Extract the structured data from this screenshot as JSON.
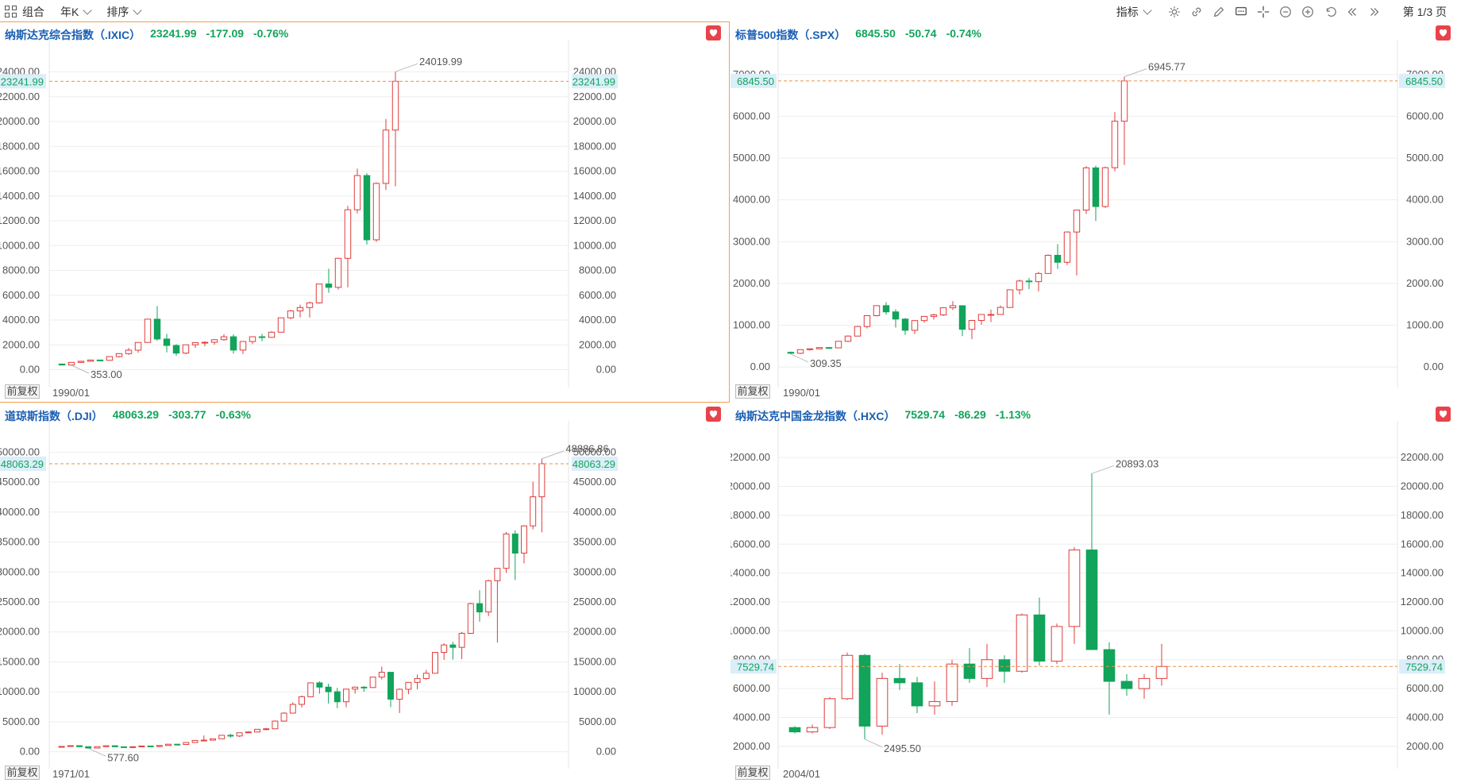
{
  "toolbar": {
    "combo_label": "组合",
    "period_label": "年K",
    "sort_label": "排序",
    "indicator_label": "指标",
    "page_label": "第 1/3 页",
    "icons": [
      "settings-icon",
      "link-icon",
      "pen-icon",
      "comment-icon",
      "crosshair-icon",
      "zoom-out-icon",
      "zoom-in-icon",
      "undo-icon",
      "first-page-icon",
      "prev-page-icon"
    ]
  },
  "panels": [
    {
      "name": "纳斯达克综合指数（.IXIC）",
      "price": "23241.99",
      "change": "-177.09",
      "pct": "-0.76%",
      "adjust_label": "前复权",
      "start_date": "1990/01",
      "axis_labels": [
        "0.00",
        "2000.00",
        "4000.00",
        "6000.00",
        "8000.00",
        "10000.00",
        "12000.00",
        "14000.00",
        "16000.00",
        "18000.00",
        "20000.00",
        "22000.00",
        "24000.00"
      ],
      "current_label": "23241.99",
      "high_label": "24019.99",
      "low_label": "353.00"
    },
    {
      "name": "标普500指数（.SPX）",
      "price": "6845.50",
      "change": "-50.74",
      "pct": "-0.74%",
      "adjust_label": "前复权",
      "start_date": "1990/01",
      "axis_labels": [
        "0.00",
        "1000.00",
        "2000.00",
        "3000.00",
        "4000.00",
        "5000.00",
        "6000.00",
        "7000.00"
      ],
      "current_label": "6845.50",
      "high_label": "6945.77",
      "low_label": "309.35"
    },
    {
      "name": "道琼斯指数（.DJI）",
      "price": "48063.29",
      "change": "-303.77",
      "pct": "-0.63%",
      "adjust_label": "前复权",
      "start_date": "1971/01",
      "axis_labels": [
        "0.00",
        "5000.00",
        "10000.00",
        "15000.00",
        "20000.00",
        "25000.00",
        "30000.00",
        "35000.00",
        "40000.00",
        "45000.00",
        "50000.00"
      ],
      "current_label": "48063.29",
      "high_label": "48886.86",
      "low_label": "577.60"
    },
    {
      "name": "纳斯达克中国金龙指数（.HXC）",
      "price": "7529.74",
      "change": "-86.29",
      "pct": "-1.13%",
      "adjust_label": "前复权",
      "start_date": "2004/01",
      "axis_labels": [
        "2000.00",
        "4000.00",
        "6000.00",
        "8000.00",
        "10000.00",
        "12000.00",
        "14000.00",
        "16000.00",
        "18000.00",
        "20000.00",
        "22000.00"
      ],
      "current_label": "7529.74",
      "high_label": "20893.03",
      "low_label": "2495.50"
    }
  ],
  "colors": {
    "up": "#e03c3c",
    "down": "#11a45a",
    "title": "#1a5fb4",
    "grid": "#eeeeee",
    "current_line": "#e8924a",
    "price_label_bg": "#dbeef9",
    "heart": "#e8424b"
  },
  "chart_data": [
    {
      "type": "candlestick",
      "title": "纳斯达克综合指数（.IXIC）",
      "period": "yearly",
      "ylim": [
        -800,
        24800
      ],
      "candles": [
        {
          "o": 454,
          "h": 470,
          "l": 353,
          "c": 374
        },
        {
          "o": 374,
          "h": 590,
          "l": 352,
          "c": 586
        },
        {
          "o": 586,
          "h": 680,
          "l": 550,
          "c": 677
        },
        {
          "o": 677,
          "h": 790,
          "l": 650,
          "c": 777
        },
        {
          "o": 777,
          "h": 800,
          "l": 690,
          "c": 752
        },
        {
          "o": 752,
          "h": 1070,
          "l": 740,
          "c": 1052
        },
        {
          "o": 1052,
          "h": 1330,
          "l": 980,
          "c": 1291
        },
        {
          "o": 1291,
          "h": 1750,
          "l": 1190,
          "c": 1570
        },
        {
          "o": 1570,
          "h": 2200,
          "l": 1360,
          "c": 2193
        },
        {
          "o": 2193,
          "h": 4070,
          "l": 2170,
          "c": 4069
        },
        {
          "o": 4069,
          "h": 5130,
          "l": 2330,
          "c": 2471
        },
        {
          "o": 2471,
          "h": 2890,
          "l": 1390,
          "c": 1950
        },
        {
          "o": 1950,
          "h": 2060,
          "l": 1110,
          "c": 1335
        },
        {
          "o": 1335,
          "h": 2010,
          "l": 1250,
          "c": 2003
        },
        {
          "o": 2003,
          "h": 2150,
          "l": 1750,
          "c": 2175
        },
        {
          "o": 2175,
          "h": 2280,
          "l": 1880,
          "c": 2205
        },
        {
          "o": 2205,
          "h": 2470,
          "l": 2010,
          "c": 2415
        },
        {
          "o": 2415,
          "h": 2860,
          "l": 2330,
          "c": 2652
        },
        {
          "o": 2652,
          "h": 2860,
          "l": 1290,
          "c": 1577
        },
        {
          "o": 1577,
          "h": 2300,
          "l": 1260,
          "c": 2269
        },
        {
          "o": 2269,
          "h": 2680,
          "l": 2060,
          "c": 2653
        },
        {
          "o": 2653,
          "h": 2890,
          "l": 2300,
          "c": 2605
        },
        {
          "o": 2605,
          "h": 3100,
          "l": 2570,
          "c": 3020
        },
        {
          "o": 3020,
          "h": 4180,
          "l": 3010,
          "c": 4177
        },
        {
          "o": 4177,
          "h": 4820,
          "l": 4070,
          "c": 4736
        },
        {
          "o": 4736,
          "h": 5230,
          "l": 4210,
          "c": 5007
        },
        {
          "o": 5007,
          "h": 5490,
          "l": 4200,
          "c": 5383
        },
        {
          "o": 5383,
          "h": 6910,
          "l": 5320,
          "c": 6903
        },
        {
          "o": 6903,
          "h": 8140,
          "l": 6190,
          "c": 6635
        },
        {
          "o": 6635,
          "h": 9020,
          "l": 6460,
          "c": 8973
        },
        {
          "o": 8973,
          "h": 13200,
          "l": 6630,
          "c": 12888
        },
        {
          "o": 12888,
          "h": 16210,
          "l": 12600,
          "c": 15645
        },
        {
          "o": 15645,
          "h": 15830,
          "l": 10090,
          "c": 10466
        },
        {
          "o": 10466,
          "h": 15100,
          "l": 10300,
          "c": 15011
        },
        {
          "o": 15011,
          "h": 20200,
          "l": 14480,
          "c": 19311
        },
        {
          "o": 19311,
          "h": 24019,
          "l": 14780,
          "c": 23242
        }
      ]
    },
    {
      "type": "candlestick",
      "title": "标普500指数（.SPX）",
      "period": "yearly",
      "ylim": [
        -300,
        7300
      ],
      "candles": [
        {
          "o": 353,
          "h": 370,
          "l": 309,
          "c": 330
        },
        {
          "o": 330,
          "h": 420,
          "l": 312,
          "c": 417
        },
        {
          "o": 417,
          "h": 442,
          "l": 394,
          "c": 436
        },
        {
          "o": 436,
          "h": 471,
          "l": 429,
          "c": 466
        },
        {
          "o": 466,
          "h": 482,
          "l": 438,
          "c": 459
        },
        {
          "o": 459,
          "h": 621,
          "l": 459,
          "c": 616
        },
        {
          "o": 616,
          "h": 757,
          "l": 598,
          "c": 741
        },
        {
          "o": 741,
          "h": 983,
          "l": 737,
          "c": 970
        },
        {
          "o": 970,
          "h": 1242,
          "l": 923,
          "c": 1229
        },
        {
          "o": 1229,
          "h": 1469,
          "l": 1212,
          "c": 1469
        },
        {
          "o": 1469,
          "h": 1553,
          "l": 1254,
          "c": 1320
        },
        {
          "o": 1320,
          "h": 1384,
          "l": 944,
          "c": 1148
        },
        {
          "o": 1148,
          "h": 1172,
          "l": 768,
          "c": 880
        },
        {
          "o": 880,
          "h": 1112,
          "l": 788,
          "c": 1112
        },
        {
          "o": 1112,
          "h": 1217,
          "l": 1060,
          "c": 1212
        },
        {
          "o": 1212,
          "h": 1275,
          "l": 1137,
          "c": 1248
        },
        {
          "o": 1248,
          "h": 1431,
          "l": 1219,
          "c": 1418
        },
        {
          "o": 1418,
          "h": 1576,
          "l": 1364,
          "c": 1468
        },
        {
          "o": 1468,
          "h": 1471,
          "l": 741,
          "c": 903
        },
        {
          "o": 903,
          "h": 1130,
          "l": 667,
          "c": 1115
        },
        {
          "o": 1115,
          "h": 1262,
          "l": 1011,
          "c": 1258
        },
        {
          "o": 1258,
          "h": 1371,
          "l": 1075,
          "c": 1258
        },
        {
          "o": 1258,
          "h": 1475,
          "l": 1258,
          "c": 1426
        },
        {
          "o": 1426,
          "h": 1849,
          "l": 1426,
          "c": 1848
        },
        {
          "o": 1848,
          "h": 2093,
          "l": 1738,
          "c": 2059
        },
        {
          "o": 2059,
          "h": 2135,
          "l": 1867,
          "c": 2044
        },
        {
          "o": 2044,
          "h": 2277,
          "l": 1810,
          "c": 2239
        },
        {
          "o": 2239,
          "h": 2694,
          "l": 2239,
          "c": 2674
        },
        {
          "o": 2674,
          "h": 2941,
          "l": 2347,
          "c": 2507
        },
        {
          "o": 2507,
          "h": 3247,
          "l": 2444,
          "c": 3231
        },
        {
          "o": 3231,
          "h": 3760,
          "l": 2192,
          "c": 3756
        },
        {
          "o": 3756,
          "h": 4808,
          "l": 3663,
          "c": 4766
        },
        {
          "o": 4766,
          "h": 4818,
          "l": 3492,
          "c": 3840
        },
        {
          "o": 3840,
          "h": 4794,
          "l": 3809,
          "c": 4770
        },
        {
          "o": 4770,
          "h": 6100,
          "l": 4682,
          "c": 5882
        },
        {
          "o": 5882,
          "h": 6946,
          "l": 4835,
          "c": 6846
        }
      ]
    },
    {
      "type": "candlestick",
      "title": "道琼斯指数（.DJI）",
      "period": "yearly",
      "ylim": [
        -1500,
        51500
      ],
      "candles": [
        {
          "o": 831,
          "h": 950,
          "l": 790,
          "c": 890
        },
        {
          "o": 890,
          "h": 1040,
          "l": 880,
          "c": 1020
        },
        {
          "o": 1020,
          "h": 1050,
          "l": 790,
          "c": 850
        },
        {
          "o": 850,
          "h": 890,
          "l": 578,
          "c": 616
        },
        {
          "o": 616,
          "h": 880,
          "l": 600,
          "c": 852
        },
        {
          "o": 852,
          "h": 1015,
          "l": 850,
          "c": 1005
        },
        {
          "o": 1005,
          "h": 1000,
          "l": 800,
          "c": 831
        },
        {
          "o": 831,
          "h": 910,
          "l": 740,
          "c": 805
        },
        {
          "o": 805,
          "h": 900,
          "l": 790,
          "c": 839
        },
        {
          "o": 839,
          "h": 1000,
          "l": 760,
          "c": 964
        },
        {
          "o": 964,
          "h": 1025,
          "l": 820,
          "c": 875
        },
        {
          "o": 875,
          "h": 1070,
          "l": 770,
          "c": 1047
        },
        {
          "o": 1047,
          "h": 1290,
          "l": 1027,
          "c": 1259
        },
        {
          "o": 1259,
          "h": 1290,
          "l": 1080,
          "c": 1212
        },
        {
          "o": 1212,
          "h": 1560,
          "l": 1180,
          "c": 1547
        },
        {
          "o": 1547,
          "h": 1960,
          "l": 1500,
          "c": 1896
        },
        {
          "o": 1896,
          "h": 2720,
          "l": 1740,
          "c": 1939
        },
        {
          "o": 1939,
          "h": 2190,
          "l": 1880,
          "c": 2169
        },
        {
          "o": 2169,
          "h": 2810,
          "l": 2140,
          "c": 2753
        },
        {
          "o": 2753,
          "h": 3000,
          "l": 2360,
          "c": 2634
        },
        {
          "o": 2634,
          "h": 3170,
          "l": 2470,
          "c": 3169
        },
        {
          "o": 3169,
          "h": 3420,
          "l": 3140,
          "c": 3301
        },
        {
          "o": 3301,
          "h": 3800,
          "l": 3240,
          "c": 3754
        },
        {
          "o": 3754,
          "h": 3980,
          "l": 3590,
          "c": 3834
        },
        {
          "o": 3834,
          "h": 5220,
          "l": 3830,
          "c": 5117
        },
        {
          "o": 5117,
          "h": 6580,
          "l": 5030,
          "c": 6448
        },
        {
          "o": 6448,
          "h": 8260,
          "l": 6390,
          "c": 7908
        },
        {
          "o": 7908,
          "h": 9380,
          "l": 7400,
          "c": 9181
        },
        {
          "o": 9181,
          "h": 11570,
          "l": 9100,
          "c": 11497
        },
        {
          "o": 11497,
          "h": 11750,
          "l": 9700,
          "c": 10787
        },
        {
          "o": 10787,
          "h": 11350,
          "l": 8060,
          "c": 10021
        },
        {
          "o": 10021,
          "h": 10670,
          "l": 7280,
          "c": 8342
        },
        {
          "o": 8342,
          "h": 10450,
          "l": 7420,
          "c": 10454
        },
        {
          "o": 10454,
          "h": 10870,
          "l": 9710,
          "c": 10783
        },
        {
          "o": 10783,
          "h": 10940,
          "l": 10000,
          "c": 10718
        },
        {
          "o": 10718,
          "h": 12510,
          "l": 10660,
          "c": 12463
        },
        {
          "o": 12463,
          "h": 14200,
          "l": 12050,
          "c": 13264
        },
        {
          "o": 13264,
          "h": 13280,
          "l": 7450,
          "c": 8776
        },
        {
          "o": 8776,
          "h": 10580,
          "l": 6470,
          "c": 10428
        },
        {
          "o": 10428,
          "h": 11630,
          "l": 9610,
          "c": 11578
        },
        {
          "o": 11578,
          "h": 12880,
          "l": 10400,
          "c": 12218
        },
        {
          "o": 12218,
          "h": 13660,
          "l": 12040,
          "c": 13104
        },
        {
          "o": 13104,
          "h": 16590,
          "l": 13100,
          "c": 16577
        },
        {
          "o": 16577,
          "h": 18100,
          "l": 15340,
          "c": 17823
        },
        {
          "o": 17823,
          "h": 18350,
          "l": 15370,
          "c": 17425
        },
        {
          "o": 17425,
          "h": 19990,
          "l": 15450,
          "c": 19763
        },
        {
          "o": 19763,
          "h": 24880,
          "l": 19680,
          "c": 24719
        },
        {
          "o": 24719,
          "h": 26950,
          "l": 21710,
          "c": 23327
        },
        {
          "o": 23327,
          "h": 28700,
          "l": 22640,
          "c": 28538
        },
        {
          "o": 28538,
          "h": 30640,
          "l": 18210,
          "c": 30606
        },
        {
          "o": 30606,
          "h": 36680,
          "l": 29860,
          "c": 36338
        },
        {
          "o": 36338,
          "h": 36950,
          "l": 28660,
          "c": 33147
        },
        {
          "o": 33147,
          "h": 37800,
          "l": 31430,
          "c": 37690
        },
        {
          "o": 37690,
          "h": 45070,
          "l": 37120,
          "c": 42544
        },
        {
          "o": 42544,
          "h": 48887,
          "l": 36610,
          "c": 48063
        }
      ]
    },
    {
      "type": "candlestick",
      "title": "纳斯达克中国金龙指数（.HXC）",
      "period": "yearly",
      "ylim": [
        1000,
        23000
      ],
      "candles": [
        {
          "o": 3300,
          "h": 3400,
          "l": 2900,
          "c": 3000
        },
        {
          "o": 3000,
          "h": 3500,
          "l": 2900,
          "c": 3300
        },
        {
          "o": 3300,
          "h": 5400,
          "l": 3200,
          "c": 5300
        },
        {
          "o": 5300,
          "h": 8500,
          "l": 5200,
          "c": 8300
        },
        {
          "o": 8300,
          "h": 8400,
          "l": 2496,
          "c": 3400
        },
        {
          "o": 3400,
          "h": 7100,
          "l": 2800,
          "c": 6700
        },
        {
          "o": 6700,
          "h": 7700,
          "l": 5900,
          "c": 6400
        },
        {
          "o": 6400,
          "h": 6800,
          "l": 4300,
          "c": 4800
        },
        {
          "o": 4800,
          "h": 6500,
          "l": 4200,
          "c": 5100
        },
        {
          "o": 5100,
          "h": 8000,
          "l": 4800,
          "c": 7700
        },
        {
          "o": 7700,
          "h": 8800,
          "l": 6400,
          "c": 6700
        },
        {
          "o": 6700,
          "h": 9100,
          "l": 6100,
          "c": 8000
        },
        {
          "o": 8000,
          "h": 8300,
          "l": 6400,
          "c": 7200
        },
        {
          "o": 7200,
          "h": 11200,
          "l": 7100,
          "c": 11100
        },
        {
          "o": 11100,
          "h": 12300,
          "l": 7600,
          "c": 7900
        },
        {
          "o": 7900,
          "h": 10500,
          "l": 7700,
          "c": 10300
        },
        {
          "o": 10300,
          "h": 15800,
          "l": 9100,
          "c": 15600
        },
        {
          "o": 15600,
          "h": 20893,
          "l": 8900,
          "c": 8700
        },
        {
          "o": 8700,
          "h": 9200,
          "l": 4200,
          "c": 6500
        },
        {
          "o": 6500,
          "h": 7000,
          "l": 5500,
          "c": 6000
        },
        {
          "o": 6000,
          "h": 7000,
          "l": 5300,
          "c": 6700
        },
        {
          "o": 6700,
          "h": 9100,
          "l": 6200,
          "c": 7530
        }
      ]
    }
  ]
}
